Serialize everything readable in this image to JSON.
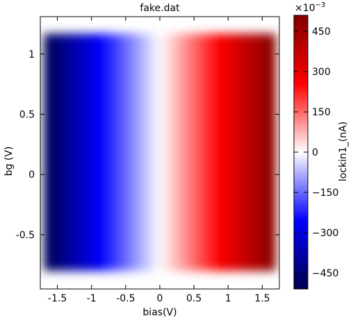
{
  "chart_data": {
    "type": "heatmap",
    "title": "fake.dat",
    "xlabel": "bias(V)",
    "ylabel": "bg (V)",
    "xlim": [
      -1.75,
      1.75
    ],
    "ylim": [
      -0.95,
      1.31
    ],
    "x_ticks": [
      -1.5,
      -1,
      -0.5,
      0,
      0.5,
      1,
      1.5
    ],
    "x_tick_labels": [
      "-1.5",
      "-1",
      "-0.5",
      "0",
      "0.5",
      "1",
      "1.5"
    ],
    "y_ticks": [
      -0.5,
      0,
      0.5,
      1
    ],
    "y_tick_labels": [
      "-0.5",
      "0",
      "0.5",
      "1"
    ],
    "data_extent": {
      "x": [
        -1.7,
        1.7
      ],
      "y": [
        -0.8,
        1.17
      ]
    },
    "data_model": "value increases linearly with bias, independent of bg",
    "bias_grid": [
      -1.5,
      -1.0,
      -0.5,
      0.0,
      0.5,
      1.0,
      1.5
    ],
    "lockin1_values_e-3": [
      -500,
      -333,
      -167,
      0,
      167,
      333,
      500
    ],
    "colormap": "seismic",
    "colormap_stops": [
      "#00004c",
      "#0000ff",
      "#ffffff",
      "#ff0000",
      "#800000"
    ],
    "colorbar": {
      "label": "lockin1_(nA)",
      "multiplier": "×10",
      "exponent": "−3",
      "range": [
        -510,
        510
      ],
      "ticks": [
        -450,
        -300,
        -150,
        0,
        150,
        300,
        450
      ],
      "tick_labels": [
        "−450",
        "−300",
        "−150",
        "0",
        "150",
        "300",
        "450"
      ]
    },
    "grid": false
  }
}
